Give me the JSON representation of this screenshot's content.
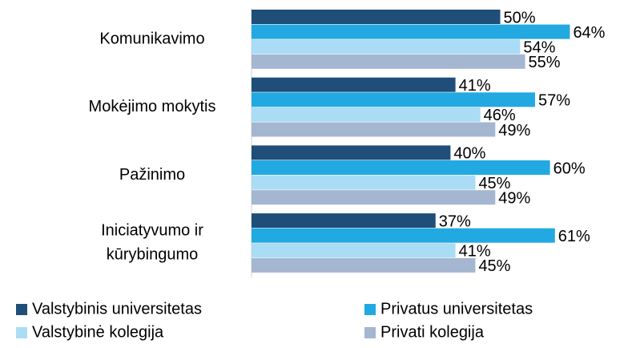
{
  "chart_data": {
    "type": "hbar",
    "categories": [
      "Komunikavimo",
      "Mokėjimo mokytis",
      "Pažinimo",
      "Iniciatyvumo ir\nkūrybingumo"
    ],
    "series": [
      {
        "name": "Valstybinis universitetas",
        "color": "#1f4e79",
        "values": [
          50,
          41,
          40,
          37
        ],
        "value_labels": [
          "50%",
          "41%",
          "40%",
          "37%"
        ]
      },
      {
        "name": "Privatus universitetas",
        "color": "#22a9e1",
        "values": [
          64,
          57,
          60,
          61
        ],
        "value_labels": [
          "64%",
          "57%",
          "60%",
          "61%"
        ]
      },
      {
        "name": "Valstybinė kolegija",
        "color": "#aadcf5",
        "values": [
          54,
          46,
          45,
          41
        ],
        "value_labels": [
          "54%",
          "46%",
          "45%",
          "41%"
        ]
      },
      {
        "name": "Privati kolegija",
        "color": "#a5b6d0",
        "values": [
          55,
          49,
          49,
          45
        ],
        "value_labels": [
          "55%",
          "49%",
          "49%",
          "45%"
        ]
      }
    ],
    "xlim": [
      0,
      100
    ]
  }
}
